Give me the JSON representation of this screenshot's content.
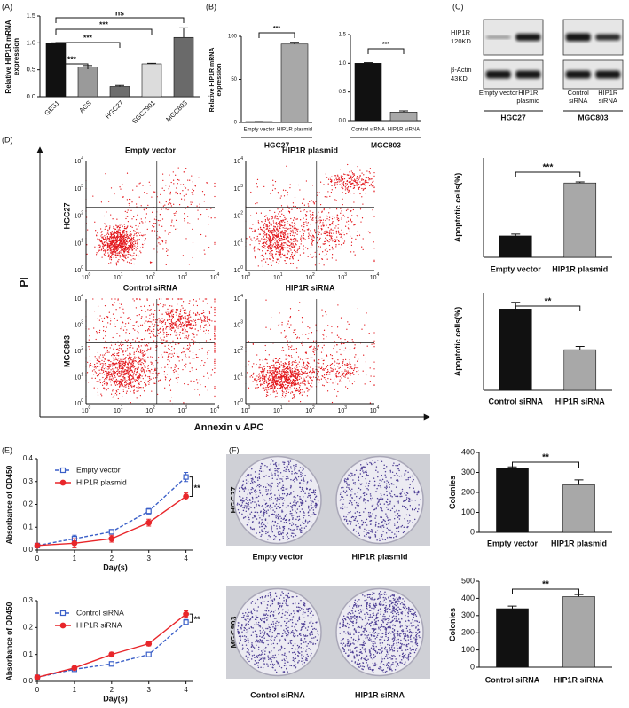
{
  "chart_data": [
    {
      "type": "bar",
      "ylabel": "Relative HIP1R mRNA expression",
      "categories": [
        "GES1",
        "AGS",
        "HGC27",
        "SGC7901",
        "MGC803"
      ],
      "values": [
        1.0,
        0.55,
        0.19,
        0.61,
        1.1
      ],
      "errors": [
        0,
        0.03,
        0.02,
        0.01,
        0.18
      ],
      "colors": [
        "#111111",
        "#9a9a9a",
        "#6e6e6e",
        "#dcdcdc",
        "#6a6a6a"
      ],
      "ylim": [
        0,
        1.5
      ],
      "yticks": [
        {
          "value": 0,
          "label": "0.0"
        },
        {
          "value": 0.5,
          "label": "0.5"
        },
        {
          "value": 1,
          "label": "1.0"
        },
        {
          "value": 1.5,
          "label": "1.5"
        }
      ],
      "significance": [
        {
          "from": 0,
          "to": 1,
          "label": "***"
        },
        {
          "from": 0,
          "to": 2,
          "label": "***"
        },
        {
          "from": 0,
          "to": 3,
          "label": "***"
        },
        {
          "from": 0,
          "to": 4,
          "label": "ns"
        }
      ]
    },
    {
      "type": "bar",
      "ylabel": "Relative HIP1R mRNA expression",
      "xlabel": "HGC27",
      "categories": [
        "Empty vector",
        "HIP1R plasmid"
      ],
      "values": [
        1,
        91
      ],
      "errors": [
        0,
        2
      ],
      "colors": [
        "#111111",
        "#a8a8a8"
      ],
      "ylim": [
        0,
        100
      ],
      "yticks": [
        0,
        50,
        100
      ],
      "significance": [
        {
          "from": 0,
          "to": 1,
          "label": "***"
        }
      ]
    },
    {
      "type": "bar",
      "xlabel": "MGC803",
      "categories": [
        "Control siRNA",
        "HIP1R siRNA"
      ],
      "values": [
        1.0,
        0.15
      ],
      "errors": [
        0.01,
        0.02
      ],
      "colors": [
        "#111111",
        "#a8a8a8"
      ],
      "ylim": [
        0,
        1.5
      ],
      "yticks": [
        {
          "value": 0,
          "label": "0.0"
        },
        {
          "value": 0.5,
          "label": "0.5"
        },
        {
          "value": 1,
          "label": "1.0"
        },
        {
          "value": 1.5,
          "label": "1.5"
        }
      ],
      "significance": [
        {
          "from": 0,
          "to": 1,
          "label": "***"
        }
      ]
    },
    {
      "type": "bar",
      "ylabel": "Apoptotic cells(%)",
      "categories": [
        "Empty vector",
        "HIP1R plasmid"
      ],
      "values": [
        5.8,
        20.2
      ],
      "errors": [
        0.5,
        0.3
      ],
      "colors": [
        "#111111",
        "#a8a8a8"
      ],
      "ylim": [
        0,
        27
      ],
      "significance": [
        {
          "from": 0,
          "to": 1,
          "label": "***"
        }
      ]
    },
    {
      "type": "bar",
      "ylabel": "Apoptotic cells(%)",
      "categories": [
        "Control siRNA",
        "HIP1R siRNA"
      ],
      "values": [
        30,
        15
      ],
      "errors": [
        2.5,
        1.2
      ],
      "colors": [
        "#111111",
        "#a8a8a8"
      ],
      "ylim": [
        0,
        36
      ],
      "significance": [
        {
          "from": 0,
          "to": 1,
          "label": "**"
        }
      ]
    },
    {
      "type": "line",
      "ylabel": "Absorbance of OD450",
      "xlabel": "Day(s)",
      "x": [
        0,
        1,
        2,
        3,
        4
      ],
      "xlim": [
        0,
        4.2
      ],
      "xticks": [
        0,
        1,
        2,
        3,
        4
      ],
      "ylim": [
        0,
        0.4
      ],
      "yticks": [
        {
          "value": 0,
          "label": "0.0"
        },
        0.1,
        0.2,
        0.3,
        0.4
      ],
      "series": [
        {
          "name": "Empty vector",
          "color": "#3a5fc8",
          "line_style": "dashed",
          "marker": "square",
          "values": [
            0.02,
            0.05,
            0.08,
            0.17,
            0.32
          ],
          "errors": [
            0.005,
            0.015,
            0.01,
            0.012,
            0.02
          ]
        },
        {
          "name": "HIP1R plasmid",
          "color": "#e8262a",
          "line_style": "solid",
          "marker": "circle",
          "values": [
            0.02,
            0.03,
            0.05,
            0.12,
            0.235
          ],
          "errors": [
            0.005,
            0.02,
            0.015,
            0.015,
            0.015
          ]
        }
      ],
      "annotation_label": "**"
    },
    {
      "type": "line",
      "ylabel": "Absorbance of OD450",
      "xlabel": "Day(s)",
      "x": [
        0,
        1,
        2,
        3,
        4
      ],
      "xlim": [
        0,
        4.2
      ],
      "xticks": [
        0,
        1,
        2,
        3,
        4
      ],
      "ylim": [
        0,
        0.3
      ],
      "yticks": [
        {
          "value": 0,
          "label": "0.0"
        },
        0.1,
        0.2,
        0.3
      ],
      "series": [
        {
          "name": "Control siRNA",
          "color": "#3a5fc8",
          "line_style": "dashed",
          "marker": "square",
          "values": [
            0.015,
            0.045,
            0.065,
            0.1,
            0.22
          ],
          "errors": [
            0.003,
            0.005,
            0.007,
            0.005,
            0.01
          ]
        },
        {
          "name": "HIP1R siRNA",
          "color": "#e8262a",
          "line_style": "solid",
          "marker": "circle",
          "values": [
            0.015,
            0.05,
            0.1,
            0.14,
            0.25
          ],
          "errors": [
            0.003,
            0.005,
            0.008,
            0.008,
            0.012
          ]
        }
      ],
      "annotation_label": "**"
    },
    {
      "type": "bar",
      "ylabel": "Colonies",
      "categories": [
        "Empty vector",
        "HIP1R plasmid"
      ],
      "values": [
        320,
        238
      ],
      "errors": [
        8,
        25
      ],
      "colors": [
        "#111111",
        "#a8a8a8"
      ],
      "ylim": [
        0,
        400
      ],
      "yticks": [
        0,
        100,
        200,
        300,
        400
      ],
      "significance": [
        {
          "from": 0,
          "to": 1,
          "label": "**"
        }
      ]
    },
    {
      "type": "bar",
      "ylabel": "Colonies",
      "categories": [
        "Control siRNA",
        "HIP1R siRNA"
      ],
      "values": [
        340,
        410
      ],
      "errors": [
        15,
        12
      ],
      "colors": [
        "#111111",
        "#a8a8a8"
      ],
      "ylim": [
        0,
        500
      ],
      "yticks": [
        0,
        100,
        200,
        300,
        400,
        500
      ],
      "significance": [
        {
          "from": 0,
          "to": 1,
          "label": "**"
        }
      ]
    }
  ],
  "figure": {
    "panel_labels": [
      "(A)",
      "(B)",
      "(C)",
      "(D)",
      "(E)",
      "(F)"
    ],
    "blot": {
      "proteins": [
        {
          "name": "HIP1R",
          "size": "120KD"
        },
        {
          "name": "β-Actin",
          "size": "43KD"
        }
      ],
      "groups": [
        {
          "name": "HGC27",
          "lanes": [
            "Empty vector",
            "HIP1R plasmid"
          ]
        },
        {
          "name": "MGC803",
          "lanes": [
            "Control siRNA",
            "HIP1R siRNA"
          ]
        }
      ]
    },
    "flow": {
      "y_label": "PI",
      "x_label": "Annexin v APC",
      "tick_base": "10",
      "tick_exponents": [
        0,
        1,
        2,
        3,
        4
      ],
      "rows": [
        {
          "name": "HGC27",
          "plots": [
            "Empty vector",
            "HIP1R plasmid"
          ]
        },
        {
          "name": "MGC803",
          "plots": [
            "Control siRNA",
            "HIP1R siRNA"
          ]
        }
      ]
    },
    "colony": {
      "rows": [
        {
          "name": "HGC27",
          "plates": [
            "Empty vector",
            "HIP1R plasmid"
          ]
        },
        {
          "name": "MGC803",
          "plates": [
            "Control siRNA",
            "HIP1R siRNA"
          ]
        }
      ]
    }
  }
}
